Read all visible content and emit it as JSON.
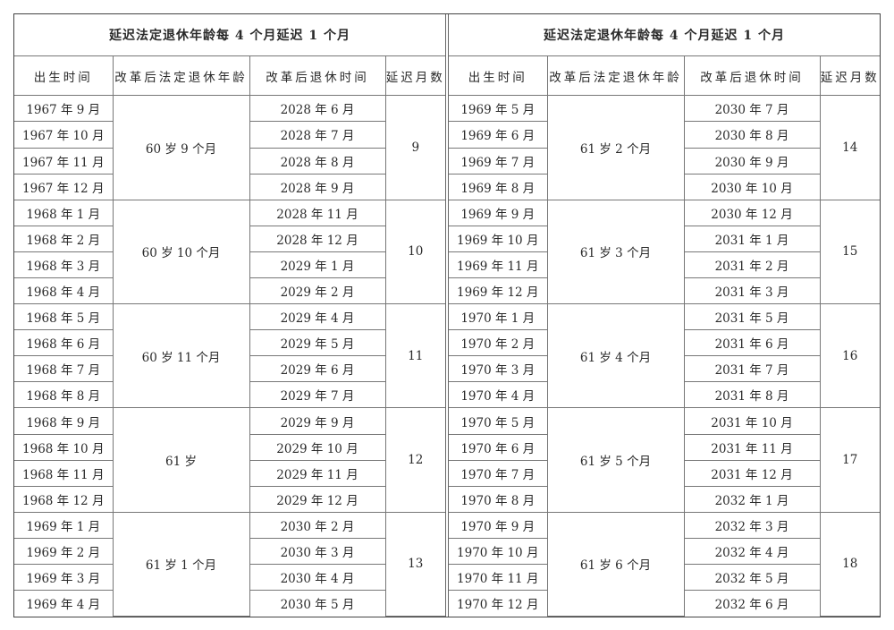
{
  "tables": [
    {
      "title": "延迟法定退休年龄每 4 个月延迟 1 个月",
      "headers": [
        "出生时间",
        "改革后法定退休年龄",
        "改革后退休时间",
        "延迟月数"
      ],
      "groups": [
        {
          "age": "60 岁 9 个月",
          "delay": "9",
          "rows": [
            [
              "1967 年 9 月",
              "2028 年 6 月"
            ],
            [
              "1967 年 10 月",
              "2028 年 7 月"
            ],
            [
              "1967 年 11 月",
              "2028 年 8 月"
            ],
            [
              "1967 年 12 月",
              "2028 年 9 月"
            ]
          ]
        },
        {
          "age": "60 岁 10 个月",
          "delay": "10",
          "rows": [
            [
              "1968 年 1 月",
              "2028 年 11 月"
            ],
            [
              "1968 年 2 月",
              "2028 年 12 月"
            ],
            [
              "1968 年 3 月",
              "2029 年 1 月"
            ],
            [
              "1968 年 4 月",
              "2029 年 2 月"
            ]
          ]
        },
        {
          "age": "60 岁 11 个月",
          "delay": "11",
          "rows": [
            [
              "1968 年 5 月",
              "2029 年 4 月"
            ],
            [
              "1968 年 6 月",
              "2029 年 5 月"
            ],
            [
              "1968 年 7 月",
              "2029 年 6 月"
            ],
            [
              "1968 年 8 月",
              "2029 年 7 月"
            ]
          ]
        },
        {
          "age": "61 岁",
          "delay": "12",
          "rows": [
            [
              "1968 年 9 月",
              "2029 年 9 月"
            ],
            [
              "1968 年 10 月",
              "2029 年 10 月"
            ],
            [
              "1968 年 11 月",
              "2029 年 11 月"
            ],
            [
              "1968 年 12 月",
              "2029 年 12 月"
            ]
          ]
        },
        {
          "age": "61 岁 1 个月",
          "delay": "13",
          "rows": [
            [
              "1969 年 1 月",
              "2030 年 2 月"
            ],
            [
              "1969 年 2 月",
              "2030 年 3 月"
            ],
            [
              "1969 年 3 月",
              "2030 年 4 月"
            ],
            [
              "1969 年 4 月",
              "2030 年 5 月"
            ]
          ]
        }
      ]
    },
    {
      "title": "延迟法定退休年龄每 4 个月延迟 1 个月",
      "headers": [
        "出生时间",
        "改革后法定退休年龄",
        "改革后退休时间",
        "延迟月数"
      ],
      "groups": [
        {
          "age": "61 岁 2 个月",
          "delay": "14",
          "rows": [
            [
              "1969 年 5 月",
              "2030 年 7 月"
            ],
            [
              "1969 年 6 月",
              "2030 年 8 月"
            ],
            [
              "1969 年 7 月",
              "2030 年 9 月"
            ],
            [
              "1969 年 8 月",
              "2030 年 10 月"
            ]
          ]
        },
        {
          "age": "61 岁 3 个月",
          "delay": "15",
          "rows": [
            [
              "1969 年 9 月",
              "2030 年 12 月"
            ],
            [
              "1969 年 10 月",
              "2031 年 1 月"
            ],
            [
              "1969 年 11 月",
              "2031 年 2 月"
            ],
            [
              "1969 年 12 月",
              "2031 年 3 月"
            ]
          ]
        },
        {
          "age": "61 岁 4 个月",
          "delay": "16",
          "rows": [
            [
              "1970 年 1 月",
              "2031 年 5 月"
            ],
            [
              "1970 年 2 月",
              "2031 年 6 月"
            ],
            [
              "1970 年 3 月",
              "2031 年 7 月"
            ],
            [
              "1970 年 4 月",
              "2031 年 8 月"
            ]
          ]
        },
        {
          "age": "61 岁 5 个月",
          "delay": "17",
          "rows": [
            [
              "1970 年 5 月",
              "2031 年 10 月"
            ],
            [
              "1970 年 6 月",
              "2031 年 11 月"
            ],
            [
              "1970 年 7 月",
              "2031 年 12 月"
            ],
            [
              "1970 年 8 月",
              "2032 年 1 月"
            ]
          ]
        },
        {
          "age": "61 岁 6 个月",
          "delay": "18",
          "rows": [
            [
              "1970 年 9 月",
              "2032 年 3 月"
            ],
            [
              "1970 年 10 月",
              "2032 年 4 月"
            ],
            [
              "1970 年 11 月",
              "2032 年 5 月"
            ],
            [
              "1970 年 12 月",
              "2032 年 6 月"
            ]
          ]
        }
      ]
    }
  ]
}
